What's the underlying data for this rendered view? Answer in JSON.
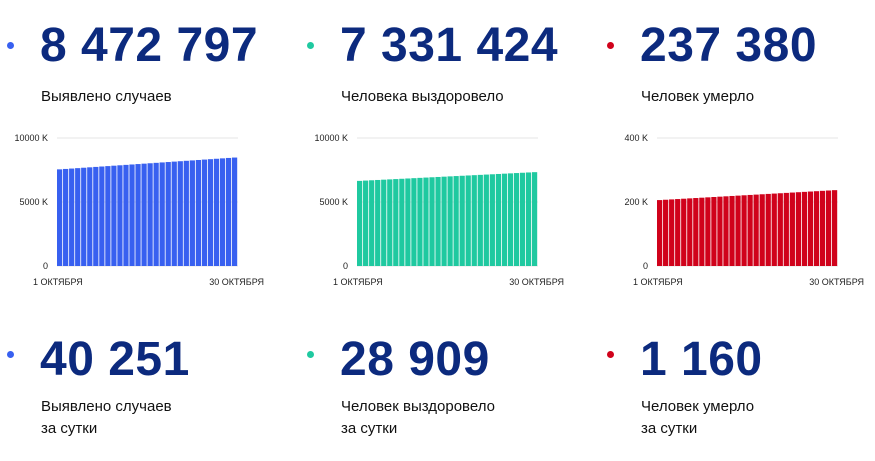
{
  "panels": [
    {
      "color": "#3860f0",
      "total": "8 472 797",
      "label": "Выявлено случаев",
      "daily": "40 251",
      "daily_label_1": "Выявлено случаев",
      "daily_label_2": "за сутки"
    },
    {
      "color": "#1fc9a0",
      "total": "7 331 424",
      "label": "Человека выздоровело",
      "daily": "28 909",
      "daily_label_1": "Человек выздоровело",
      "daily_label_2": "за сутки"
    },
    {
      "color": "#d0021b",
      "total": "237 380",
      "label": "Человек умерло",
      "daily": "1 160",
      "daily_label_1": "Человек умерло",
      "daily_label_2": "за сутки"
    }
  ],
  "chart_data": [
    {
      "type": "bar",
      "color": "#3860f0",
      "y_ticks": [
        "10000 K",
        "5000 K",
        "0"
      ],
      "ylim": [
        0,
        10000
      ],
      "x_labels": [
        "1 ОКТЯБРЯ",
        "30 ОКТЯБРЯ"
      ],
      "value_start": 7550,
      "value_end": 8473,
      "bar_count": 30,
      "grid": true
    },
    {
      "type": "bar",
      "color": "#1fc9a0",
      "y_ticks": [
        "10000 K",
        "5000 K",
        "0"
      ],
      "ylim": [
        0,
        10000
      ],
      "x_labels": [
        "1 ОКТЯБРЯ",
        "30 ОКТЯБРЯ"
      ],
      "value_start": 6650,
      "value_end": 7331,
      "bar_count": 30,
      "grid": true
    },
    {
      "type": "bar",
      "color": "#d0021b",
      "y_ticks": [
        "400 K",
        "200 K",
        "0"
      ],
      "ylim": [
        0,
        400
      ],
      "x_labels": [
        "1 ОКТЯБРЯ",
        "30 ОКТЯБРЯ"
      ],
      "value_start": 206,
      "value_end": 237,
      "bar_count": 30,
      "grid": true
    }
  ]
}
